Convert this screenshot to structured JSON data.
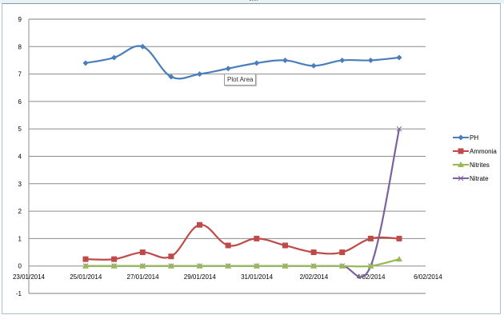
{
  "chart_data": {
    "type": "line",
    "title": "",
    "xlabel": "",
    "ylabel": "",
    "ylim": [
      -1,
      9
    ],
    "yticks": [
      -1,
      0,
      1,
      2,
      3,
      4,
      5,
      6,
      7,
      8,
      9
    ],
    "xtick_labels": [
      "23/01/2014",
      "25/01/2014",
      "27/01/2014",
      "29/01/2014",
      "31/01/2014",
      "2/02/2014",
      "4/02/2014",
      "6/02/2014"
    ],
    "x": [
      "25/01/2014",
      "26/01/2014",
      "27/01/2014",
      "28/01/2014",
      "29/01/2014",
      "30/01/2014",
      "31/01/2014",
      "1/02/2014",
      "2/02/2014",
      "3/02/2014",
      "4/02/2014",
      "5/02/2014"
    ],
    "grid": true,
    "legend_position": "right",
    "series": [
      {
        "name": "PH",
        "color": "#4a7ebb",
        "marker": "diamond",
        "values": [
          7.4,
          7.6,
          8.0,
          6.9,
          7.0,
          7.2,
          7.4,
          7.5,
          7.3,
          7.5,
          7.5,
          7.6
        ]
      },
      {
        "name": "Ammonia",
        "color": "#be4b48",
        "marker": "square",
        "values": [
          0.25,
          0.25,
          0.5,
          0.35,
          1.5,
          0.75,
          1.0,
          0.75,
          0.5,
          0.5,
          1.0,
          1.0
        ]
      },
      {
        "name": "Nitrites",
        "color": "#98b954",
        "marker": "triangle",
        "values": [
          0,
          0,
          0,
          0,
          0,
          0,
          0,
          0,
          0,
          0,
          0,
          0.25
        ]
      },
      {
        "name": "Nitrate",
        "color": "#7d60a0",
        "marker": "x",
        "values": [
          0,
          0,
          0,
          0,
          0,
          0,
          0,
          0,
          0,
          0,
          0,
          5
        ]
      }
    ]
  },
  "tooltip": "Plot Area"
}
